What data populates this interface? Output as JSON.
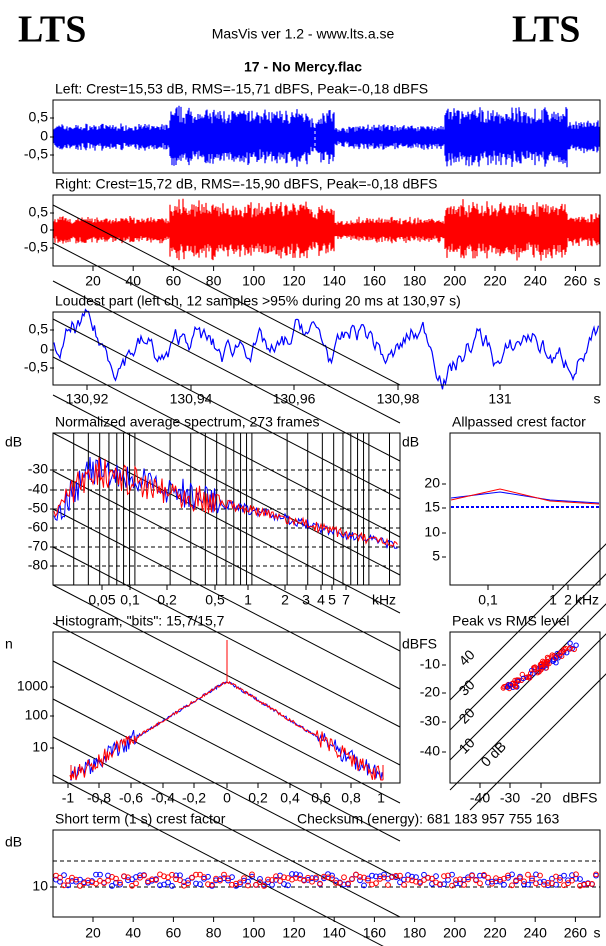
{
  "header": {
    "logo_left": "LTS",
    "app": "MasVis ver 1.2 - www.lts.a.se",
    "logo_right": "LTS",
    "file": "17 - No Mercy.flac"
  },
  "panels": [
    {
      "title": "Left: Crest=15,53 dB, RMS=-15,71 dBFS, Peak=-0,18 dBFS",
      "yticks": [
        "0,5",
        "0",
        "-0,5"
      ]
    },
    {
      "title": "Right: Crest=15,72 dB, RMS=-15,90 dBFS, Peak=-0,18 dBFS",
      "yticks": [
        "0,5",
        "0",
        "-0,5"
      ],
      "xticks": [
        "20",
        "40",
        "60",
        "80",
        "100",
        "120",
        "140",
        "160",
        "180",
        "200",
        "220",
        "240",
        "260"
      ],
      "x_unit": "s"
    },
    {
      "title": "Loudest part (left  ch, 12 samples >95% during 20 ms at 130,97 s)",
      "yticks": [
        "0,5",
        "0",
        "-0,5"
      ],
      "xticks": [
        "130,92",
        "130,94",
        "130,96",
        "130,98",
        "131"
      ],
      "x_unit": "s"
    },
    {
      "title": "Normalized average spectrum, 273 frames",
      "y_unit": "dB",
      "yticks": [
        "-30",
        "-40",
        "-50",
        "-60",
        "-70",
        "-80"
      ],
      "xticks": [
        "0,05",
        "0,1",
        "0,2",
        "0,5",
        "1",
        "2",
        "3",
        "4",
        "5",
        "7"
      ],
      "x_unit": "kHz"
    },
    {
      "title": "Allpassed crest factor",
      "y_unit": "dB",
      "yticks": [
        "20",
        "15",
        "10",
        "5"
      ],
      "xticks": [
        "0,1",
        "1",
        "2"
      ],
      "x_unit": "kHz"
    },
    {
      "title": "Histogram, \"bits\": 15,7/15,7",
      "y_unit": "n",
      "yticks": [
        "1000",
        "100",
        "10"
      ],
      "xticks": [
        "-1",
        "-0,8",
        "-0,6",
        "-0,4",
        "-0,2",
        "0",
        "0,2",
        "0,4",
        "0,6",
        "0,8",
        "1"
      ]
    },
    {
      "title": "Peak vs RMS level",
      "y_unit": "dBFS",
      "yticks": [
        "-10",
        "-20",
        "-30",
        "-40"
      ],
      "xticks": [
        "-40",
        "-30",
        "-20"
      ],
      "x_unit": "dBFS",
      "diagonals": [
        "40",
        "30",
        "20",
        "10",
        "0 dB"
      ]
    },
    {
      "title": "Short term (1 s) crest factor",
      "note": "Checksum (energy):   681 183 957 755 163",
      "y_unit": "dB",
      "yticks": [
        "10"
      ],
      "xticks": [
        "20",
        "40",
        "60",
        "80",
        "100",
        "120",
        "140",
        "160",
        "180",
        "200",
        "220",
        "240",
        "260"
      ],
      "x_unit": "s"
    }
  ]
}
